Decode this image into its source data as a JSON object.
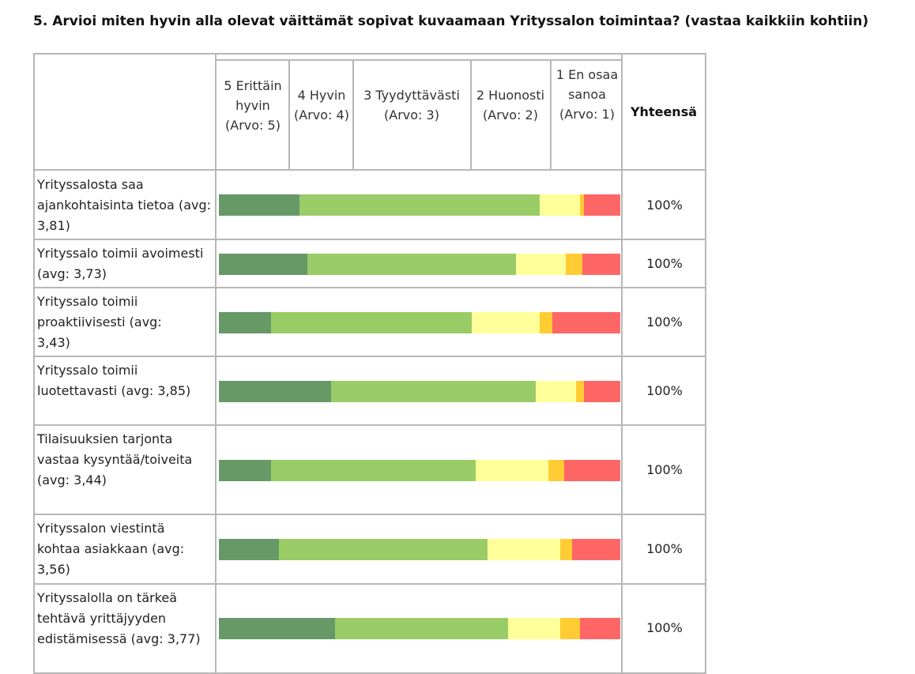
{
  "question": "5. Arvioi miten hyvin alla olevat väittämät sopivat kuvaamaan Yrityssalon toimintaa? (vastaa kaikkiin kohtiin)",
  "chart_data": {
    "type": "bar",
    "stacked": true,
    "orientation": "horizontal",
    "normalized": "percent",
    "columns": [
      "5 Erittäin hyvin (Arvo: 5)",
      "4 Hyvin (Arvo: 4)",
      "3 Tyydyttävästi (Arvo: 3)",
      "2 Huonosti (Arvo: 2)",
      "1 En osaa sanoa (Arvo: 1)"
    ],
    "total_header": "Yhteensä",
    "colors": [
      "#669966",
      "#99cc66",
      "#ffff99",
      "#ffcc33",
      "#ff6666"
    ],
    "rows": [
      {
        "label": "Yrityssalosta saa ajankohtaisinta tietoa (avg: 3,81)",
        "values": [
          20,
          60,
          10,
          1,
          9
        ],
        "total": "100%"
      },
      {
        "label": "Yrityssalo toimii avoimesti (avg: 3,73)",
        "values": [
          22,
          52,
          12.5,
          4,
          9.5
        ],
        "total": "100%"
      },
      {
        "label": "Yrityssalo toimii proaktiivisesti (avg: 3,43)",
        "values": [
          13,
          50,
          17,
          3,
          17
        ],
        "total": "100%"
      },
      {
        "label": "Yrityssalo toimii luotettavasti (avg: 3,85)",
        "values": [
          28,
          51,
          10,
          2,
          9
        ],
        "total": "100%"
      },
      {
        "label": "Tilaisuuksien tarjonta vastaa kysyntää/toiveita (avg: 3,44)",
        "values": [
          13,
          51,
          18,
          4,
          14
        ],
        "total": "100%"
      },
      {
        "label": "Yrityssalon viestintä kohtaa asiakkaan (avg: 3,56)",
        "values": [
          15,
          52,
          18,
          3,
          12
        ],
        "total": "100%"
      },
      {
        "label": "Yrityssalolla on tärkeä tehtävä yrittäjyyden edistämisessä (avg: 3,77)",
        "values": [
          29,
          43,
          13,
          5,
          10
        ],
        "total": "100%"
      }
    ]
  }
}
